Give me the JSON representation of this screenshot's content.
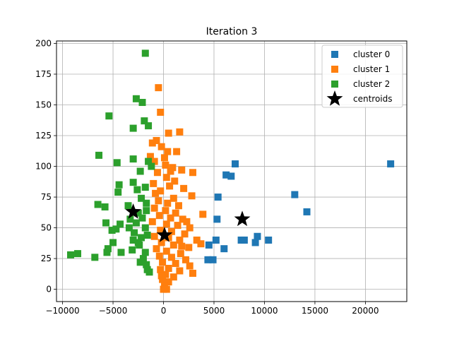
{
  "chart_data": {
    "type": "scatter",
    "title": "Iteration 3",
    "xlabel": "",
    "ylabel": "",
    "xlim": [
      -10600,
      24100
    ],
    "ylim": [
      -10,
      202
    ],
    "xticks": [
      -10000,
      -5000,
      0,
      5000,
      10000,
      15000,
      20000
    ],
    "xtick_labels": [
      "−10000",
      "−5000",
      "0",
      "5000",
      "10000",
      "15000",
      "20000"
    ],
    "yticks": [
      0,
      25,
      50,
      75,
      100,
      125,
      150,
      175,
      200
    ],
    "ytick_labels": [
      "0",
      "25",
      "50",
      "75",
      "100",
      "125",
      "150",
      "175",
      "200"
    ],
    "grid": true,
    "legend_position": "top-right",
    "series": [
      {
        "name": "cluster 0",
        "color": "#1f77b4",
        "marker": "square",
        "points": [
          [
            22500,
            102
          ],
          [
            13000,
            77
          ],
          [
            14200,
            63
          ],
          [
            7100,
            102
          ],
          [
            6200,
            93
          ],
          [
            6700,
            92
          ],
          [
            5400,
            75
          ],
          [
            5300,
            57
          ],
          [
            5200,
            40
          ],
          [
            9300,
            43
          ],
          [
            9100,
            38
          ],
          [
            7700,
            40
          ],
          [
            8000,
            40
          ],
          [
            10400,
            40
          ],
          [
            4500,
            36
          ],
          [
            6000,
            33
          ],
          [
            4400,
            24
          ],
          [
            4900,
            24
          ]
        ]
      },
      {
        "name": "cluster 1",
        "color": "#ff7f0e",
        "marker": "square",
        "points": [
          [
            -500,
            164
          ],
          [
            -300,
            144
          ],
          [
            500,
            127
          ],
          [
            1600,
            128
          ],
          [
            -700,
            121
          ],
          [
            -1100,
            119
          ],
          [
            -200,
            116
          ],
          [
            400,
            112
          ],
          [
            1300,
            112
          ],
          [
            -1300,
            108
          ],
          [
            -900,
            104
          ],
          [
            200,
            101
          ],
          [
            900,
            99
          ],
          [
            1800,
            97
          ],
          [
            2900,
            95
          ],
          [
            -600,
            95
          ],
          [
            300,
            91
          ],
          [
            1100,
            88
          ],
          [
            -1000,
            86
          ],
          [
            600,
            84
          ],
          [
            2000,
            82
          ],
          [
            -300,
            80
          ],
          [
            2800,
            76
          ],
          [
            1000,
            74
          ],
          [
            -500,
            72
          ],
          [
            400,
            70
          ],
          [
            1500,
            68
          ],
          [
            -900,
            66
          ],
          [
            200,
            64
          ],
          [
            1200,
            62
          ],
          [
            3900,
            61
          ],
          [
            -400,
            60
          ],
          [
            700,
            58
          ],
          [
            1900,
            57
          ],
          [
            -1100,
            55
          ],
          [
            300,
            53
          ],
          [
            1400,
            52
          ],
          [
            2600,
            50
          ],
          [
            -300,
            48
          ],
          [
            800,
            47
          ],
          [
            2100,
            45
          ],
          [
            -900,
            43
          ],
          [
            500,
            42
          ],
          [
            1600,
            40
          ],
          [
            3300,
            40
          ],
          [
            -200,
            38
          ],
          [
            3700,
            37
          ],
          [
            1000,
            36
          ],
          [
            2500,
            34
          ],
          [
            -700,
            33
          ],
          [
            300,
            31
          ],
          [
            1700,
            29
          ],
          [
            -400,
            27
          ],
          [
            800,
            26
          ],
          [
            2200,
            24
          ],
          [
            -100,
            22
          ],
          [
            1200,
            21
          ],
          [
            2600,
            19
          ],
          [
            500,
            17
          ],
          [
            -300,
            16
          ],
          [
            1600,
            15
          ],
          [
            2900,
            13
          ],
          [
            200,
            12
          ],
          [
            1000,
            10
          ],
          [
            -100,
            8
          ],
          [
            500,
            6
          ],
          [
            100,
            3
          ],
          [
            0,
            0
          ],
          [
            300,
            0
          ],
          [
            -200,
            11
          ],
          [
            1800,
            35
          ],
          [
            2300,
            55
          ],
          [
            -800,
            78
          ],
          [
            700,
            96
          ],
          [
            100,
            107
          ]
        ]
      },
      {
        "name": "cluster 2",
        "color": "#2ca02c",
        "marker": "square",
        "points": [
          [
            -1800,
            192
          ],
          [
            -2700,
            155
          ],
          [
            -2100,
            152
          ],
          [
            -5400,
            141
          ],
          [
            -1900,
            137
          ],
          [
            -1500,
            133
          ],
          [
            -3000,
            131
          ],
          [
            -6400,
            109
          ],
          [
            -3000,
            106
          ],
          [
            -4600,
            103
          ],
          [
            -1500,
            104
          ],
          [
            -1200,
            100
          ],
          [
            -2300,
            96
          ],
          [
            -4400,
            85
          ],
          [
            -3000,
            87
          ],
          [
            -4500,
            79
          ],
          [
            -1800,
            83
          ],
          [
            -2600,
            81
          ],
          [
            -6500,
            69
          ],
          [
            -5800,
            67
          ],
          [
            -2200,
            74
          ],
          [
            -1700,
            70
          ],
          [
            -3500,
            68
          ],
          [
            -2500,
            62
          ],
          [
            -5700,
            54
          ],
          [
            -4300,
            53
          ],
          [
            -3300,
            57
          ],
          [
            -2100,
            58
          ],
          [
            -4700,
            49
          ],
          [
            -5100,
            48
          ],
          [
            -1800,
            50
          ],
          [
            -2900,
            46
          ],
          [
            -2200,
            42
          ],
          [
            -3000,
            40
          ],
          [
            -5000,
            38
          ],
          [
            -1600,
            44
          ],
          [
            -5500,
            33
          ],
          [
            -5600,
            30
          ],
          [
            -4200,
            30
          ],
          [
            -3100,
            32
          ],
          [
            -2400,
            36
          ],
          [
            -1800,
            30
          ],
          [
            -9200,
            28
          ],
          [
            -8500,
            29
          ],
          [
            -6800,
            26
          ],
          [
            -2000,
            25
          ],
          [
            -2300,
            22
          ],
          [
            -1700,
            20
          ],
          [
            -1600,
            16
          ],
          [
            -1400,
            14
          ],
          [
            -2500,
            38
          ],
          [
            -1700,
            64
          ],
          [
            -3400,
            50
          ],
          [
            -2700,
            54
          ]
        ]
      },
      {
        "name": "centroids",
        "color": "#000000",
        "marker": "star",
        "points": [
          [
            -3000,
            63
          ],
          [
            100,
            44
          ],
          [
            7800,
            57
          ]
        ]
      }
    ]
  }
}
